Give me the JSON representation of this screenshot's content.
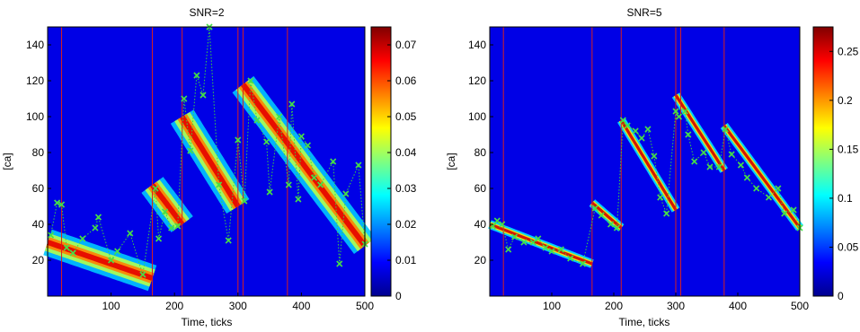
{
  "chart_data": [
    {
      "type": "heatmap",
      "title": "SNR=2",
      "xlabel": "Time, ticks",
      "ylabel": "[ca]",
      "xlim": [
        0,
        500
      ],
      "ylim": [
        0,
        150
      ],
      "xticks": [
        100,
        200,
        300,
        400,
        500
      ],
      "yticks": [
        20,
        40,
        60,
        80,
        100,
        120,
        140
      ],
      "colorbar": {
        "min": 0,
        "max": 0.075,
        "ticks": [
          0,
          0.01,
          0.02,
          0.03,
          0.04,
          0.05,
          0.06,
          0.07
        ],
        "tick_labels": [
          "0",
          "0.01",
          "0.02",
          "0.03",
          "0.04",
          "0.05",
          "0.06",
          "0.07"
        ]
      },
      "spike_times": [
        22,
        165,
        212,
        300,
        308,
        378
      ],
      "ridge": [
        {
          "t0": 0,
          "t1": 165,
          "c0": 30,
          "c1": 10
        },
        {
          "t0": 165,
          "t1": 212,
          "c0": 62,
          "c1": 40
        },
        {
          "t0": 212,
          "t1": 300,
          "c0": 100,
          "c1": 50
        },
        {
          "t0": 308,
          "t1": 500,
          "c0": 118,
          "c1": 28
        }
      ],
      "colormap": "jet",
      "observations": [
        [
          5,
          34
        ],
        [
          15,
          52
        ],
        [
          22,
          51
        ],
        [
          30,
          27
        ],
        [
          40,
          24
        ],
        [
          55,
          32
        ],
        [
          75,
          38
        ],
        [
          80,
          44
        ],
        [
          100,
          20
        ],
        [
          110,
          25
        ],
        [
          130,
          35
        ],
        [
          150,
          12
        ],
        [
          170,
          60
        ],
        [
          175,
          32
        ],
        [
          185,
          47
        ],
        [
          195,
          38
        ],
        [
          205,
          39
        ],
        [
          215,
          110
        ],
        [
          225,
          81
        ],
        [
          235,
          123
        ],
        [
          245,
          112
        ],
        [
          255,
          150
        ],
        [
          270,
          62
        ],
        [
          285,
          31
        ],
        [
          300,
          87
        ],
        [
          310,
          53
        ],
        [
          320,
          120
        ],
        [
          330,
          98
        ],
        [
          345,
          86
        ],
        [
          350,
          58
        ],
        [
          365,
          100
        ],
        [
          380,
          62
        ],
        [
          385,
          107
        ],
        [
          395,
          54
        ],
        [
          400,
          89
        ],
        [
          410,
          84
        ],
        [
          420,
          66
        ],
        [
          430,
          62
        ],
        [
          450,
          75
        ],
        [
          460,
          18
        ],
        [
          470,
          57
        ],
        [
          490,
          73
        ],
        [
          500,
          29
        ]
      ]
    },
    {
      "type": "heatmap",
      "title": "SNR=5",
      "xlabel": "Time, ticks",
      "ylabel": "[ca]",
      "xlim": [
        0,
        500
      ],
      "ylim": [
        0,
        150
      ],
      "xticks": [
        100,
        200,
        300,
        400,
        500
      ],
      "yticks": [
        20,
        40,
        60,
        80,
        100,
        120,
        140
      ],
      "colorbar": {
        "min": 0,
        "max": 0.275,
        "ticks": [
          0,
          0.05,
          0.1,
          0.15,
          0.2,
          0.25
        ],
        "tick_labels": [
          "0",
          "0.05",
          "0.1",
          "0.15",
          "0.2",
          "0.25"
        ]
      },
      "spike_times": [
        22,
        165,
        212,
        300,
        308,
        378
      ],
      "ridge": [
        {
          "t0": 0,
          "t1": 165,
          "c0": 40,
          "c1": 18
        },
        {
          "t0": 165,
          "t1": 212,
          "c0": 52,
          "c1": 38
        },
        {
          "t0": 212,
          "t1": 300,
          "c0": 98,
          "c1": 48
        },
        {
          "t0": 300,
          "t1": 378,
          "c0": 112,
          "c1": 70
        },
        {
          "t0": 378,
          "t1": 500,
          "c0": 95,
          "c1": 38
        }
      ],
      "colormap": "jet",
      "observations": [
        [
          5,
          39
        ],
        [
          12,
          42
        ],
        [
          20,
          40
        ],
        [
          30,
          26
        ],
        [
          40,
          33
        ],
        [
          55,
          30
        ],
        [
          70,
          30
        ],
        [
          78,
          32
        ],
        [
          90,
          27
        ],
        [
          100,
          25
        ],
        [
          115,
          26
        ],
        [
          130,
          21
        ],
        [
          150,
          18
        ],
        [
          170,
          49
        ],
        [
          180,
          45
        ],
        [
          195,
          40
        ],
        [
          205,
          38
        ],
        [
          215,
          98
        ],
        [
          222,
          95
        ],
        [
          235,
          92
        ],
        [
          245,
          88
        ],
        [
          255,
          93
        ],
        [
          265,
          78
        ],
        [
          275,
          55
        ],
        [
          285,
          46
        ],
        [
          300,
          103
        ],
        [
          305,
          100
        ],
        [
          315,
          103
        ],
        [
          320,
          90
        ],
        [
          330,
          75
        ],
        [
          345,
          80
        ],
        [
          355,
          72
        ],
        [
          370,
          72
        ],
        [
          380,
          93
        ],
        [
          390,
          79
        ],
        [
          405,
          73
        ],
        [
          415,
          66
        ],
        [
          430,
          60
        ],
        [
          450,
          55
        ],
        [
          465,
          60
        ],
        [
          475,
          46
        ],
        [
          490,
          48
        ],
        [
          500,
          38
        ]
      ]
    }
  ]
}
